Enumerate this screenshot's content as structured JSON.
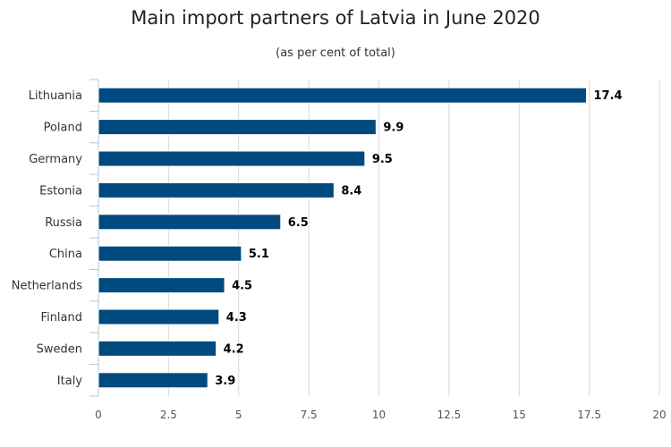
{
  "chart_data": {
    "type": "bar",
    "orientation": "horizontal",
    "title": "Main import partners of Latvia in June 2020",
    "subtitle": "(as per cent of total)",
    "categories": [
      "Lithuania",
      "Poland",
      "Germany",
      "Estonia",
      "Russia",
      "China",
      "Netherlands",
      "Finland",
      "Sweden",
      "Italy"
    ],
    "values": [
      17.4,
      9.9,
      9.5,
      8.4,
      6.5,
      5.1,
      4.5,
      4.3,
      4.2,
      3.9
    ],
    "data_labels": [
      "17.4",
      "9.9",
      "9.5",
      "8.4",
      "6.5",
      "5.1",
      "4.5",
      "4.3",
      "4.2",
      "3.9"
    ],
    "xlim": [
      0,
      20
    ],
    "x_ticks": [
      0,
      2.5,
      5,
      7.5,
      10,
      12.5,
      15,
      17.5,
      20
    ],
    "x_tick_labels": [
      "0",
      "2.5",
      "5",
      "7.5",
      "10",
      "12.5",
      "15",
      "17.5",
      "20"
    ],
    "grid": true,
    "bar_color": "#004a80",
    "grid_color": "#d8d8d8",
    "axis_color": "#b7c4d6"
  }
}
